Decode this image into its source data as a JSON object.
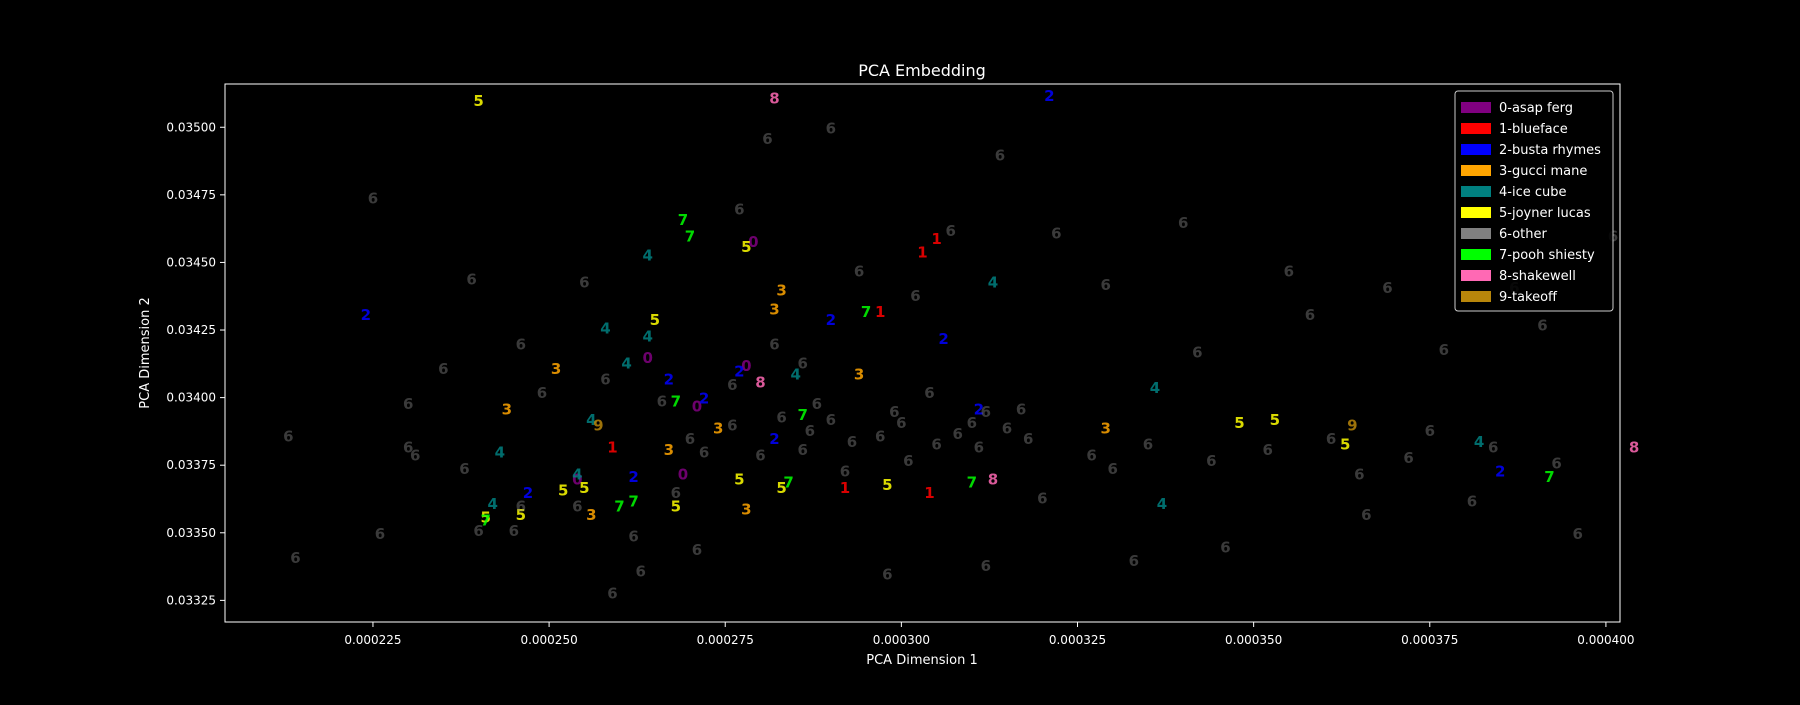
{
  "chart_data": {
    "type": "scatter",
    "title": "PCA Embedding",
    "xlabel": "PCA Dimension 1",
    "ylabel": "PCA Dimension 2",
    "xlim": [
      0.000204,
      0.000402
    ],
    "ylim": [
      0.03317,
      0.03516
    ],
    "x_ticks": [
      0.000225,
      0.00025,
      0.000275,
      0.0003,
      0.000325,
      0.00035,
      0.000375,
      0.0004
    ],
    "x_tick_labels": [
      "0.000225",
      "0.000250",
      "0.000275",
      "0.000300",
      "0.000325",
      "0.000350",
      "0.000375",
      "0.000400"
    ],
    "y_ticks": [
      0.03325,
      0.0335,
      0.03375,
      0.034,
      0.03425,
      0.0345,
      0.03475,
      0.035
    ],
    "y_tick_labels": [
      "0.03325",
      "0.03350",
      "0.03375",
      "0.03400",
      "0.03425",
      "0.03450",
      "0.03475",
      "0.03500"
    ],
    "grid": false,
    "legend_position": "top-right",
    "background": "#000000",
    "foreground": "#ffffff",
    "series": [
      {
        "name": "0-asap ferg",
        "marker": "0",
        "color": "#800080",
        "x": [
          0.000279,
          0.000264,
          0.000271,
          0.000254,
          0.000269,
          0.000278
        ],
        "y": [
          0.03458,
          0.03415,
          0.03397,
          0.0337,
          0.03372,
          0.03412
        ]
      },
      {
        "name": "1-blueface",
        "marker": "1",
        "color": "#ff0000",
        "x": [
          0.000303,
          0.000305,
          0.000297,
          0.000304,
          0.000292,
          0.000259
        ],
        "y": [
          0.03454,
          0.03459,
          0.03432,
          0.03365,
          0.03367,
          0.03382
        ]
      },
      {
        "name": "2-busta rhymes",
        "marker": "2",
        "color": "#0000ff",
        "x": [
          0.000224,
          0.000321,
          0.00029,
          0.000306,
          0.000267,
          0.000272,
          0.000277,
          0.000262,
          0.000385,
          0.000311,
          0.000247,
          0.000282
        ],
        "y": [
          0.03431,
          0.03512,
          0.03429,
          0.03422,
          0.03407,
          0.034,
          0.0341,
          0.03371,
          0.03373,
          0.03396,
          0.03365,
          0.03385
        ]
      },
      {
        "name": "3-gucci mane",
        "marker": "3",
        "color": "#ffa500",
        "x": [
          0.000283,
          0.000282,
          0.000251,
          0.000244,
          0.000294,
          0.000274,
          0.000267,
          0.000278,
          0.000329,
          0.000256
        ],
        "y": [
          0.0344,
          0.03433,
          0.03411,
          0.03396,
          0.03409,
          0.03389,
          0.03381,
          0.03359,
          0.03389,
          0.03357
        ]
      },
      {
        "name": "4-ice cube",
        "marker": "4",
        "color": "#008080",
        "x": [
          0.000264,
          0.000264,
          0.000258,
          0.000313,
          0.000261,
          0.000336,
          0.000243,
          0.000256,
          0.000254,
          0.000242,
          0.000337,
          0.000382,
          0.000285
        ],
        "y": [
          0.03453,
          0.03423,
          0.03426,
          0.03443,
          0.03413,
          0.03404,
          0.0338,
          0.03392,
          0.03372,
          0.03361,
          0.03361,
          0.03384,
          0.03409
        ]
      },
      {
        "name": "5-joyner lucas",
        "marker": "5",
        "color": "#ffff00",
        "x": [
          0.00024,
          0.000278,
          0.000265,
          0.000241,
          0.000246,
          0.000255,
          0.000268,
          0.000283,
          0.000348,
          0.000353,
          0.000277,
          0.000298,
          0.000363,
          0.000252
        ],
        "y": [
          0.0351,
          0.03456,
          0.03429,
          0.03356,
          0.03357,
          0.03367,
          0.0336,
          0.03367,
          0.03391,
          0.03392,
          0.0337,
          0.03368,
          0.03383,
          0.03366
        ]
      },
      {
        "name": "6-other",
        "marker": "6",
        "color": "#808080",
        "x": [
          0.000213,
          0.000239,
          0.00024,
          0.000262,
          0.000231,
          0.000226,
          0.000225,
          0.000214,
          0.000281,
          0.000277,
          0.00029,
          0.000314,
          0.000322,
          0.000329,
          0.00034,
          0.000355,
          0.000369,
          0.000387,
          0.000401,
          0.000255,
          0.000246,
          0.000249,
          0.000302,
          0.000307,
          0.000294,
          0.000286,
          0.000342,
          0.000358,
          0.000377,
          0.000391,
          0.000271,
          0.000263,
          0.000259,
          0.000246,
          0.000245,
          0.00032,
          0.000312,
          0.000298,
          0.000333,
          0.000346,
          0.000366,
          0.000381,
          0.000396,
          0.00023,
          0.000238,
          0.00023,
          0.000235,
          0.000258,
          0.000266,
          0.000272,
          0.000287,
          0.000299,
          0.00031,
          0.000318,
          0.000327,
          0.000335,
          0.000344,
          0.000352,
          0.000361,
          0.000372,
          0.000384,
          0.000393,
          0.000282,
          0.000276,
          0.000288,
          0.000304,
          0.000317,
          0.000254,
          0.000268,
          0.000292,
          0.00033,
          0.000365,
          0.000375,
          0.00027,
          0.000276,
          0.000283,
          0.000293,
          0.0003,
          0.000308,
          0.000315,
          0.00028,
          0.000286,
          0.000297,
          0.000305,
          0.000311,
          0.00029,
          0.000301,
          0.000312
        ],
        "y": [
          0.03386,
          0.03444,
          0.03351,
          0.03349,
          0.03379,
          0.0335,
          0.03474,
          0.03341,
          0.03496,
          0.0347,
          0.035,
          0.0349,
          0.03461,
          0.03442,
          0.03465,
          0.03447,
          0.03441,
          0.03441,
          0.0346,
          0.03443,
          0.0342,
          0.03402,
          0.03438,
          0.03462,
          0.03447,
          0.03413,
          0.03417,
          0.03431,
          0.03418,
          0.03427,
          0.03344,
          0.03336,
          0.03328,
          0.0336,
          0.03351,
          0.03363,
          0.03338,
          0.03335,
          0.0334,
          0.03345,
          0.03357,
          0.03362,
          0.0335,
          0.03382,
          0.03374,
          0.03398,
          0.03411,
          0.03407,
          0.03399,
          0.0338,
          0.03388,
          0.03395,
          0.03391,
          0.03385,
          0.03379,
          0.03383,
          0.03377,
          0.03381,
          0.03385,
          0.03378,
          0.03382,
          0.03376,
          0.0342,
          0.03405,
          0.03398,
          0.03402,
          0.03396,
          0.0336,
          0.03365,
          0.03373,
          0.03374,
          0.03372,
          0.03388,
          0.03385,
          0.0339,
          0.03393,
          0.03384,
          0.03391,
          0.03387,
          0.03389,
          0.03379,
          0.03381,
          0.03386,
          0.03383,
          0.03382,
          0.03392,
          0.03377,
          0.03395
        ]
      },
      {
        "name": "7-pooh shiesty",
        "marker": "7",
        "color": "#00ff00",
        "x": [
          0.000269,
          0.00027,
          0.000295,
          0.000268,
          0.000286,
          0.000241,
          0.00026,
          0.000262,
          0.000392,
          0.000284,
          0.00031
        ],
        "y": [
          0.03466,
          0.0346,
          0.03432,
          0.03399,
          0.03394,
          0.03355,
          0.0336,
          0.03362,
          0.03371,
          0.03369,
          0.03369
        ]
      },
      {
        "name": "8-shakewell",
        "marker": "8",
        "color": "#ff69b4",
        "x": [
          0.000282,
          0.00028,
          0.000313,
          0.000404
        ],
        "y": [
          0.03511,
          0.03406,
          0.0337,
          0.03382
        ]
      },
      {
        "name": "9-takeoff",
        "marker": "9",
        "color": "#b8860b",
        "x": [
          0.000257,
          0.000364
        ],
        "y": [
          0.0339,
          0.0339
        ]
      }
    ]
  }
}
